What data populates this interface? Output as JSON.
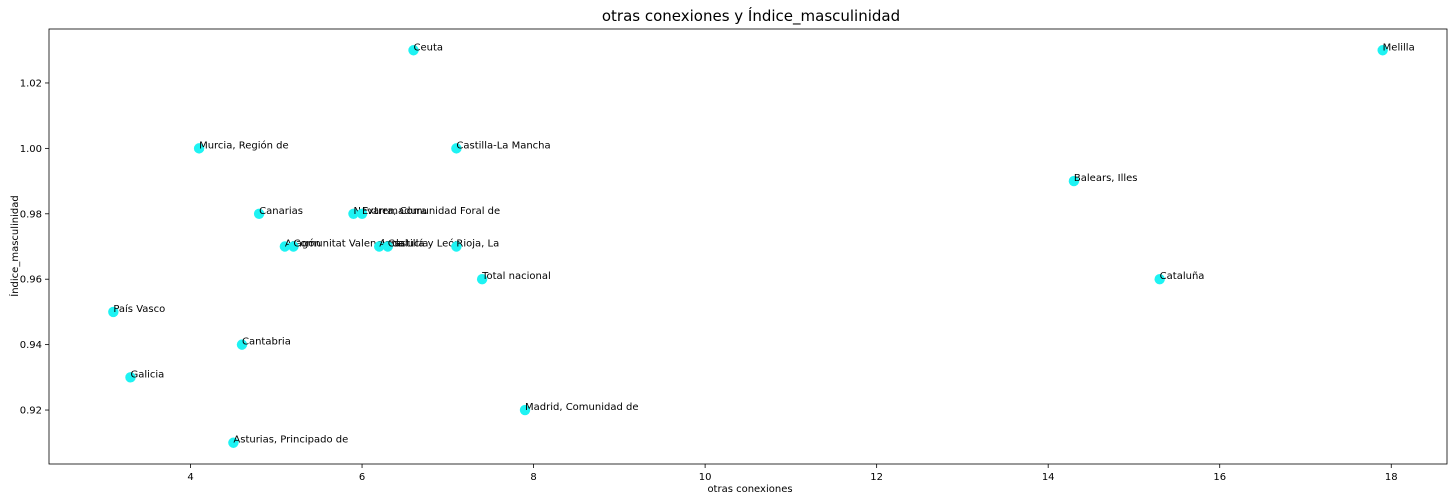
{
  "chart_data": {
    "type": "scatter",
    "title": "otras conexiones y Índice_masculinidad",
    "xlabel": "otras conexiones",
    "ylabel": "Índice_masculinidad",
    "xlim": [
      2.35,
      18.65
    ],
    "ylim": [
      0.9035,
      1.0365
    ],
    "xticks": [
      4,
      6,
      8,
      10,
      12,
      14,
      16,
      18
    ],
    "yticks": [
      0.92,
      0.94,
      0.96,
      0.98,
      1.0,
      1.02
    ],
    "ytick_labels": [
      "0.92",
      "0.94",
      "0.96",
      "0.98",
      "1.00",
      "1.02"
    ],
    "grid": false,
    "point_color": "#1ef3f3",
    "points": [
      {
        "label": "Ceuta",
        "x": 6.6,
        "y": 1.03
      },
      {
        "label": "Melilla",
        "x": 17.9,
        "y": 1.03
      },
      {
        "label": "Murcia, Región de",
        "x": 4.1,
        "y": 1.0
      },
      {
        "label": "Castilla-La Mancha",
        "x": 7.1,
        "y": 1.0
      },
      {
        "label": "Balears, Illes",
        "x": 14.3,
        "y": 0.99
      },
      {
        "label": "Canarias",
        "x": 4.8,
        "y": 0.98
      },
      {
        "label": "Navarra, Comunidad Foral de",
        "x": 5.9,
        "y": 0.98
      },
      {
        "label": "Extremadura",
        "x": 6.0,
        "y": 0.98
      },
      {
        "label": "Aragón",
        "x": 5.1,
        "y": 0.97
      },
      {
        "label": "Comunitat Valenciana",
        "x": 5.2,
        "y": 0.97
      },
      {
        "label": "Andalucía",
        "x": 6.2,
        "y": 0.97
      },
      {
        "label": "Castilla y León",
        "x": 6.3,
        "y": 0.97
      },
      {
        "label": "Rioja, La",
        "x": 7.1,
        "y": 0.97
      },
      {
        "label": "Total nacional",
        "x": 7.4,
        "y": 0.96
      },
      {
        "label": "Cataluña",
        "x": 15.3,
        "y": 0.96
      },
      {
        "label": "País Vasco",
        "x": 3.1,
        "y": 0.95
      },
      {
        "label": "Cantabria",
        "x": 4.6,
        "y": 0.94
      },
      {
        "label": "Galicia",
        "x": 3.3,
        "y": 0.93
      },
      {
        "label": "Madrid, Comunidad de",
        "x": 7.9,
        "y": 0.92
      },
      {
        "label": "Asturias, Principado de",
        "x": 4.5,
        "y": 0.91
      }
    ]
  }
}
